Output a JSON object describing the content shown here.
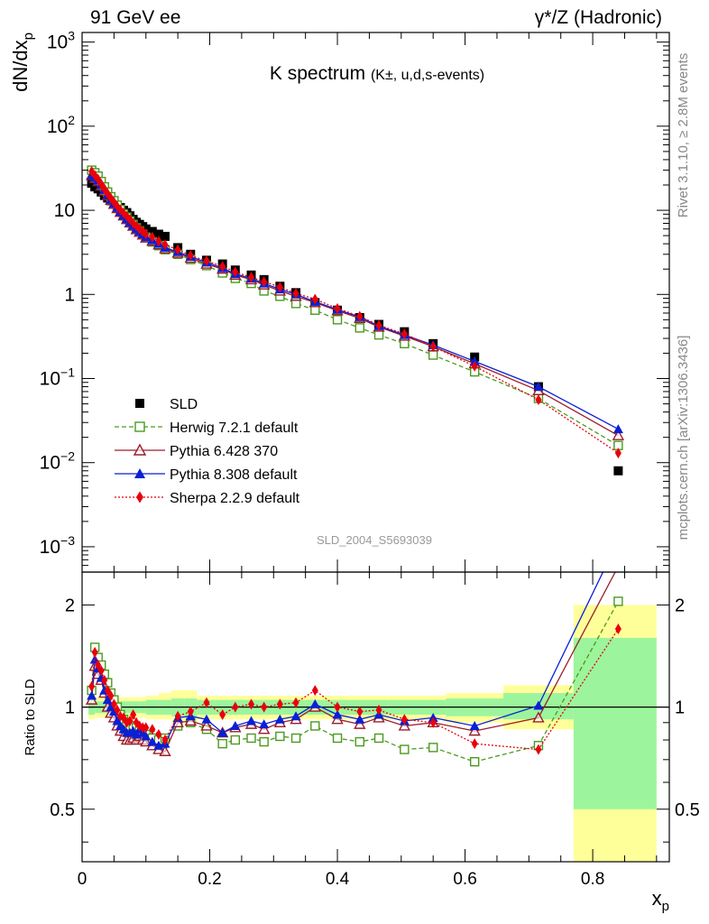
{
  "header": {
    "left": "91 GeV ee",
    "right": "γ*/Z (Hadronic)"
  },
  "side_labels": {
    "rivet": "Rivet 3.1.10, ≥ 2.8M events",
    "mcplots": "mcplots.cern.ch [arXiv:1306.3436]"
  },
  "watermark": "SLD_2004_S5693039",
  "chart_data": [
    {
      "type": "line",
      "panel": "main",
      "title": "K spectrum",
      "subtitle": "(K±, u,d,s-events)",
      "xlabel": "x_p",
      "ylabel": "dN/dx_p",
      "yscale": "log",
      "xlim": [
        0,
        0.92
      ],
      "ylim": [
        0.0005,
        1300
      ],
      "y_tick_labels": [
        "10^-3",
        "10^-2",
        "10^-1",
        "1",
        "10",
        "10^2",
        "10^3"
      ],
      "x_tick_labels": [
        "0",
        "0.2",
        "0.4",
        "0.6",
        "0.8"
      ],
      "legend_position": "bottom-left",
      "series": [
        {
          "name": "SLD",
          "color": "#000000",
          "marker": "filled-square",
          "x": [
            0.015,
            0.02,
            0.025,
            0.03,
            0.035,
            0.04,
            0.045,
            0.05,
            0.055,
            0.06,
            0.065,
            0.07,
            0.075,
            0.08,
            0.085,
            0.09,
            0.095,
            0.1,
            0.11,
            0.12,
            0.13,
            0.15,
            0.17,
            0.195,
            0.22,
            0.24,
            0.265,
            0.285,
            0.31,
            0.335,
            0.365,
            0.4,
            0.435,
            0.465,
            0.505,
            0.55,
            0.615,
            0.715,
            0.84
          ],
          "y": [
            21,
            19,
            18,
            16.5,
            15,
            14,
            13,
            12.2,
            11.5,
            10.8,
            10,
            9.4,
            8.6,
            7.8,
            7.2,
            6.8,
            6.4,
            6.0,
            5.6,
            5.2,
            4.9,
            3.6,
            3.0,
            2.55,
            2.3,
            1.95,
            1.7,
            1.5,
            1.25,
            1.05,
            0.8,
            0.65,
            0.53,
            0.44,
            0.36,
            0.26,
            0.18,
            0.08,
            0.008
          ]
        },
        {
          "name": "Herwig 7.2.1 default",
          "color": "#4a9a1e",
          "marker": "open-square",
          "line": "dashed",
          "x": [
            0.015,
            0.02,
            0.025,
            0.03,
            0.035,
            0.04,
            0.045,
            0.05,
            0.055,
            0.06,
            0.065,
            0.07,
            0.075,
            0.08,
            0.085,
            0.09,
            0.095,
            0.1,
            0.11,
            0.12,
            0.13,
            0.15,
            0.17,
            0.195,
            0.22,
            0.24,
            0.265,
            0.285,
            0.31,
            0.335,
            0.365,
            0.4,
            0.435,
            0.465,
            0.505,
            0.55,
            0.615,
            0.715,
            0.84
          ],
          "y": [
            30,
            28,
            25.5,
            22,
            19,
            16.5,
            14.5,
            13,
            11.5,
            10.2,
            9.1,
            8.3,
            7.5,
            6.8,
            6.2,
            5.7,
            5.2,
            4.8,
            4.2,
            3.8,
            3.4,
            3.0,
            2.6,
            2.2,
            1.8,
            1.55,
            1.35,
            1.1,
            0.95,
            0.78,
            0.65,
            0.5,
            0.4,
            0.33,
            0.26,
            0.19,
            0.12,
            0.058,
            0.016
          ]
        },
        {
          "name": "Pythia 6.428 370",
          "color": "#9b1d2a",
          "marker": "open-triangle",
          "line": "solid",
          "x": [
            0.015,
            0.02,
            0.025,
            0.03,
            0.035,
            0.04,
            0.045,
            0.05,
            0.055,
            0.06,
            0.065,
            0.07,
            0.075,
            0.08,
            0.085,
            0.09,
            0.095,
            0.1,
            0.11,
            0.12,
            0.13,
            0.15,
            0.17,
            0.195,
            0.22,
            0.24,
            0.265,
            0.285,
            0.31,
            0.335,
            0.365,
            0.4,
            0.435,
            0.465,
            0.505,
            0.55,
            0.615,
            0.715,
            0.84
          ],
          "y": [
            26,
            24,
            22,
            19.5,
            17,
            15,
            13.2,
            11.8,
            10.5,
            9.5,
            8.6,
            7.8,
            7.1,
            6.5,
            5.9,
            5.5,
            5.1,
            4.7,
            4.3,
            3.9,
            3.5,
            3.1,
            2.7,
            2.3,
            2.0,
            1.7,
            1.5,
            1.3,
            1.1,
            0.95,
            0.8,
            0.64,
            0.52,
            0.41,
            0.32,
            0.24,
            0.15,
            0.072,
            0.021
          ]
        },
        {
          "name": "Pythia 8.308 default",
          "color": "#0b1fd4",
          "marker": "filled-triangle",
          "line": "solid",
          "x": [
            0.015,
            0.02,
            0.025,
            0.03,
            0.035,
            0.04,
            0.045,
            0.05,
            0.055,
            0.06,
            0.065,
            0.07,
            0.075,
            0.08,
            0.085,
            0.09,
            0.095,
            0.1,
            0.11,
            0.12,
            0.13,
            0.15,
            0.17,
            0.195,
            0.22,
            0.24,
            0.265,
            0.285,
            0.31,
            0.335,
            0.365,
            0.4,
            0.435,
            0.465,
            0.505,
            0.55,
            0.615,
            0.715,
            0.84
          ],
          "y": [
            26,
            24.5,
            22.5,
            20,
            17.5,
            15.2,
            13.4,
            12,
            10.7,
            9.6,
            8.7,
            7.9,
            7.2,
            6.6,
            6.0,
            5.6,
            5.2,
            4.8,
            4.4,
            4.0,
            3.6,
            3.2,
            2.8,
            2.4,
            2.05,
            1.75,
            1.55,
            1.35,
            1.15,
            1.0,
            0.82,
            0.66,
            0.54,
            0.42,
            0.33,
            0.25,
            0.16,
            0.08,
            0.025
          ]
        },
        {
          "name": "Sherpa 2.2.9 default",
          "color": "#e8000b",
          "marker": "filled-diamond",
          "line": "dotted",
          "x": [
            0.015,
            0.02,
            0.025,
            0.03,
            0.035,
            0.04,
            0.045,
            0.05,
            0.055,
            0.06,
            0.065,
            0.07,
            0.075,
            0.08,
            0.085,
            0.09,
            0.095,
            0.1,
            0.11,
            0.12,
            0.13,
            0.15,
            0.17,
            0.195,
            0.22,
            0.24,
            0.265,
            0.285,
            0.31,
            0.335,
            0.365,
            0.4,
            0.435,
            0.465,
            0.505,
            0.55,
            0.615,
            0.715,
            0.84
          ],
          "y": [
            29,
            26,
            23.5,
            20.5,
            18,
            15.8,
            14,
            12.5,
            11.2,
            10.1,
            9.3,
            8.5,
            7.8,
            7.0,
            6.5,
            6.0,
            5.6,
            5.2,
            4.8,
            4.3,
            3.9,
            3.4,
            2.9,
            2.5,
            2.15,
            1.85,
            1.6,
            1.42,
            1.22,
            1.03,
            0.88,
            0.68,
            0.55,
            0.43,
            0.34,
            0.24,
            0.14,
            0.056,
            0.013
          ]
        }
      ]
    },
    {
      "type": "line",
      "panel": "ratio",
      "ylabel": "Ratio to SLD",
      "xlabel": "x_p",
      "xlim": [
        0,
        0.92
      ],
      "ylim": [
        0.35,
        2.5
      ],
      "yscale": "log",
      "y_tick_labels": [
        "0.5",
        "1",
        "2"
      ],
      "x_tick_labels": [
        "0",
        "0.2",
        "0.4",
        "0.6",
        "0.8"
      ],
      "uncertainty_bands": {
        "x_edges": [
          0.01,
          0.02,
          0.03,
          0.04,
          0.05,
          0.06,
          0.07,
          0.08,
          0.09,
          0.1,
          0.12,
          0.14,
          0.16,
          0.18,
          0.21,
          0.23,
          0.25,
          0.27,
          0.3,
          0.32,
          0.35,
          0.38,
          0.42,
          0.45,
          0.48,
          0.53,
          0.57,
          0.66,
          0.77,
          0.9
        ],
        "stat_lo": [
          0.95,
          0.96,
          0.96,
          0.96,
          0.96,
          0.96,
          0.96,
          0.96,
          0.96,
          0.95,
          0.95,
          0.94,
          0.94,
          0.95,
          0.95,
          0.95,
          0.95,
          0.95,
          0.95,
          0.95,
          0.95,
          0.95,
          0.95,
          0.95,
          0.95,
          0.95,
          0.94,
          0.92,
          0.5
        ],
        "stat_hi": [
          1.05,
          1.04,
          1.04,
          1.04,
          1.04,
          1.04,
          1.04,
          1.04,
          1.04,
          1.05,
          1.05,
          1.06,
          1.06,
          1.05,
          1.05,
          1.05,
          1.05,
          1.05,
          1.05,
          1.05,
          1.05,
          1.05,
          1.05,
          1.05,
          1.05,
          1.05,
          1.06,
          1.1,
          1.6
        ],
        "tot_lo": [
          0.92,
          0.93,
          0.93,
          0.93,
          0.93,
          0.93,
          0.93,
          0.93,
          0.93,
          0.92,
          0.92,
          0.9,
          0.9,
          0.92,
          0.92,
          0.92,
          0.92,
          0.92,
          0.92,
          0.92,
          0.92,
          0.92,
          0.92,
          0.92,
          0.92,
          0.92,
          0.9,
          0.86,
          0.35
        ],
        "tot_hi": [
          1.08,
          1.07,
          1.07,
          1.07,
          1.07,
          1.07,
          1.07,
          1.07,
          1.07,
          1.08,
          1.1,
          1.12,
          1.12,
          1.08,
          1.08,
          1.08,
          1.08,
          1.08,
          1.08,
          1.08,
          1.08,
          1.08,
          1.08,
          1.08,
          1.08,
          1.08,
          1.1,
          1.16,
          2.0
        ]
      },
      "series": [
        {
          "name": "Herwig 7.2.1 default",
          "color": "#4a9a1e",
          "marker": "open-square",
          "line": "dashed",
          "x": [
            0.015,
            0.02,
            0.025,
            0.03,
            0.035,
            0.04,
            0.045,
            0.05,
            0.055,
            0.06,
            0.065,
            0.07,
            0.075,
            0.08,
            0.085,
            0.09,
            0.095,
            0.1,
            0.11,
            0.12,
            0.13,
            0.15,
            0.17,
            0.195,
            0.22,
            0.24,
            0.265,
            0.285,
            0.31,
            0.335,
            0.365,
            0.4,
            0.435,
            0.465,
            0.505,
            0.55,
            0.615,
            0.715,
            0.84
          ],
          "y": [
            1.12,
            1.5,
            1.4,
            1.33,
            1.25,
            1.18,
            1.1,
            1.05,
            1.0,
            0.95,
            0.92,
            0.9,
            0.88,
            0.88,
            0.87,
            0.85,
            0.84,
            0.83,
            0.81,
            0.8,
            0.81,
            0.88,
            0.9,
            0.86,
            0.78,
            0.8,
            0.81,
            0.79,
            0.82,
            0.81,
            0.88,
            0.81,
            0.79,
            0.81,
            0.75,
            0.76,
            0.69,
            0.77,
            2.05
          ]
        },
        {
          "name": "Pythia 6.428 370",
          "color": "#9b1d2a",
          "marker": "open-triangle",
          "line": "solid",
          "x": [
            0.015,
            0.02,
            0.025,
            0.03,
            0.035,
            0.04,
            0.045,
            0.05,
            0.055,
            0.06,
            0.065,
            0.07,
            0.075,
            0.08,
            0.085,
            0.09,
            0.095,
            0.1,
            0.11,
            0.12,
            0.13,
            0.15,
            0.17,
            0.195,
            0.22,
            0.24,
            0.265,
            0.285,
            0.31,
            0.335,
            0.365,
            0.4,
            0.435,
            0.465,
            0.505,
            0.55,
            0.615,
            0.715,
            0.84
          ],
          "y": [
            1.05,
            1.32,
            1.25,
            1.2,
            1.1,
            1.0,
            0.96,
            0.93,
            0.88,
            0.85,
            0.82,
            0.8,
            0.8,
            0.81,
            0.8,
            0.82,
            0.8,
            0.79,
            0.77,
            0.75,
            0.74,
            0.9,
            0.91,
            0.88,
            0.84,
            0.87,
            0.89,
            0.86,
            0.9,
            0.92,
            1.0,
            0.92,
            0.89,
            0.93,
            0.88,
            0.9,
            0.85,
            0.93,
            2.6
          ]
        },
        {
          "name": "Pythia 8.308 default",
          "color": "#0b1fd4",
          "marker": "filled-triangle",
          "line": "solid",
          "x": [
            0.015,
            0.02,
            0.025,
            0.03,
            0.035,
            0.04,
            0.045,
            0.05,
            0.055,
            0.06,
            0.065,
            0.07,
            0.075,
            0.08,
            0.085,
            0.09,
            0.095,
            0.1,
            0.11,
            0.12,
            0.13,
            0.15,
            0.17,
            0.195,
            0.22,
            0.24,
            0.265,
            0.285,
            0.31,
            0.335,
            0.365,
            0.4,
            0.435,
            0.465,
            0.505,
            0.55,
            0.615,
            0.715,
            0.84
          ],
          "y": [
            1.08,
            1.38,
            1.3,
            1.22,
            1.12,
            1.05,
            1.0,
            0.97,
            0.91,
            0.88,
            0.86,
            0.84,
            0.84,
            0.85,
            0.83,
            0.86,
            0.84,
            0.82,
            0.79,
            0.77,
            0.78,
            0.93,
            0.94,
            0.92,
            0.84,
            0.88,
            0.91,
            0.89,
            0.92,
            0.94,
            1.02,
            0.95,
            0.92,
            0.95,
            0.91,
            0.93,
            0.88,
            1.01,
            3.1
          ]
        },
        {
          "name": "Sherpa 2.2.9 default",
          "color": "#e8000b",
          "marker": "filled-diamond",
          "line": "dotted",
          "x": [
            0.015,
            0.02,
            0.025,
            0.03,
            0.035,
            0.04,
            0.045,
            0.05,
            0.055,
            0.06,
            0.065,
            0.07,
            0.075,
            0.08,
            0.085,
            0.09,
            0.095,
            0.1,
            0.11,
            0.12,
            0.13,
            0.15,
            0.17,
            0.195,
            0.22,
            0.24,
            0.265,
            0.285,
            0.31,
            0.335,
            0.365,
            0.4,
            0.435,
            0.465,
            0.505,
            0.55,
            0.615,
            0.715,
            0.84
          ],
          "y": [
            1.15,
            1.45,
            1.33,
            1.28,
            1.2,
            1.12,
            1.08,
            1.02,
            0.98,
            0.94,
            0.93,
            0.9,
            0.91,
            0.95,
            0.9,
            0.88,
            0.87,
            0.87,
            0.86,
            0.83,
            0.8,
            0.94,
            0.97,
            1.03,
            0.95,
            1.0,
            1.02,
            1.0,
            1.02,
            1.03,
            1.12,
            1.0,
            0.97,
            0.98,
            0.92,
            0.9,
            0.78,
            0.75,
            1.7
          ]
        }
      ]
    }
  ]
}
